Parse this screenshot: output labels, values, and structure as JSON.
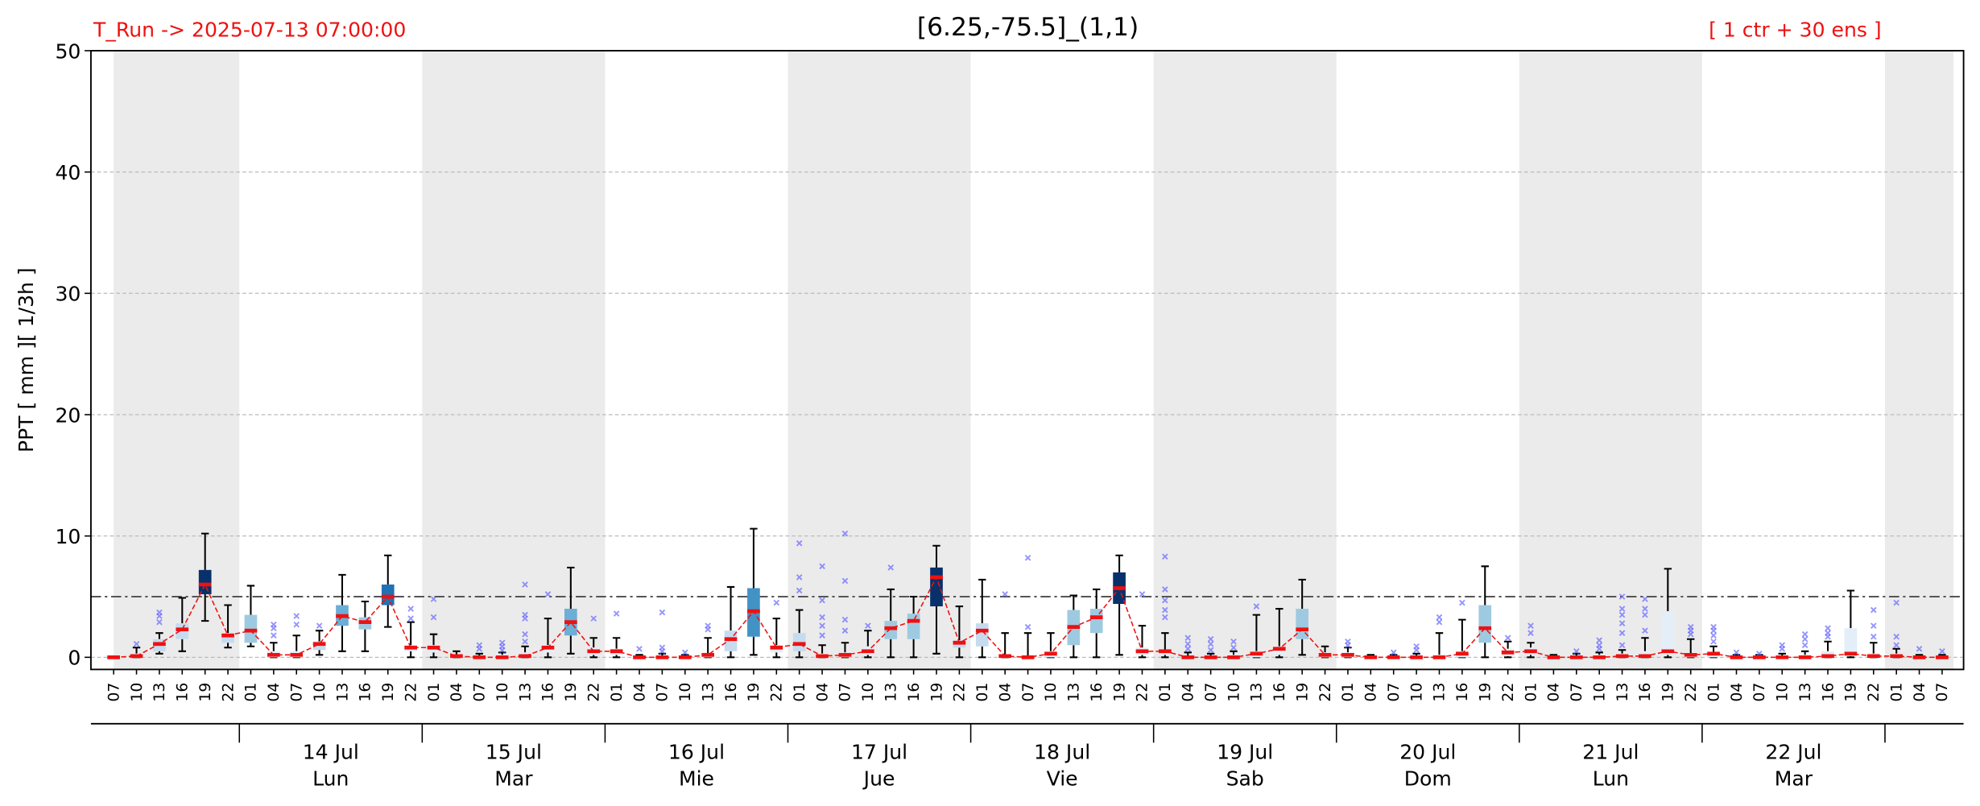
{
  "chart_data": {
    "type": "boxplot",
    "title": "[6.25,-75.5]_(1,1)",
    "run_label": "T_Run -> 2025-07-13  07:00:00",
    "members_label": "[ 1 ctr + 30 ens ]",
    "y_label": "PPT  [ mm ][ 1/3h ]",
    "ylim": [
      -1,
      50
    ],
    "yticks": [
      0,
      10,
      20,
      30,
      40,
      50
    ],
    "grid": true,
    "threshold": 5,
    "median_color": "#ee1111",
    "outlier_color": "#6666ff",
    "categories": [
      "07",
      "10",
      "13",
      "16",
      "19",
      "22",
      "01",
      "04",
      "07",
      "10",
      "13",
      "16",
      "19",
      "22",
      "01",
      "04",
      "07",
      "10",
      "13",
      "16",
      "19",
      "22",
      "01",
      "04",
      "07",
      "10",
      "13",
      "16",
      "19",
      "22",
      "01",
      "04",
      "07",
      "10",
      "13",
      "16",
      "19",
      "22",
      "01",
      "04",
      "07",
      "10",
      "13",
      "16",
      "19",
      "22",
      "01",
      "04",
      "07",
      "10",
      "13",
      "16",
      "19",
      "22",
      "01",
      "04",
      "07",
      "10",
      "13",
      "16",
      "19",
      "22",
      "01",
      "04",
      "07",
      "10",
      "13",
      "16",
      "19",
      "22",
      "01",
      "04",
      "07",
      "10",
      "13",
      "16",
      "19",
      "22",
      "01",
      "04",
      "07"
    ],
    "days": [
      {
        "date": "14 Jul",
        "weekday": "Lun"
      },
      {
        "date": "15 Jul",
        "weekday": "Mar"
      },
      {
        "date": "16 Jul",
        "weekday": "Mie"
      },
      {
        "date": "17 Jul",
        "weekday": "Jue"
      },
      {
        "date": "18 Jul",
        "weekday": "Vie"
      },
      {
        "date": "19 Jul",
        "weekday": "Sab"
      },
      {
        "date": "20 Jul",
        "weekday": "Dom"
      },
      {
        "date": "21 Jul",
        "weekday": "Lun"
      },
      {
        "date": "22 Jul",
        "weekday": "Mar"
      }
    ],
    "median": [
      0,
      0.1,
      1.1,
      2.3,
      6.0,
      1.8,
      2.2,
      0.2,
      0.2,
      1.1,
      3.4,
      2.9,
      5.0,
      0.8,
      0.8,
      0.1,
      0,
      0,
      0.1,
      0.8,
      2.9,
      0.5,
      0.5,
      0,
      0,
      0,
      0.2,
      1.5,
      3.8,
      0.8,
      1.1,
      0.1,
      0.2,
      0.5,
      2.4,
      3.0,
      6.6,
      1.2,
      2.2,
      0.1,
      0,
      0.3,
      2.5,
      3.3,
      5.7,
      0.5,
      0.5,
      0,
      0,
      0,
      0.3,
      0.7,
      2.3,
      0.2,
      0.2,
      0,
      0,
      0,
      0,
      0.3,
      2.4,
      0.4,
      0.5,
      0,
      0,
      0,
      0.1,
      0.1,
      0.5,
      0.2,
      0.3,
      0,
      0,
      0,
      0,
      0.1,
      0.3,
      0.1,
      0.1,
      0,
      0
    ],
    "q1": [
      0,
      0,
      0.5,
      1.5,
      5.2,
      1.2,
      1.2,
      0,
      0,
      0.6,
      2.6,
      2.3,
      4.3,
      0.5,
      0.4,
      0,
      0,
      0,
      0,
      0.4,
      1.8,
      0.2,
      0.2,
      0,
      0,
      0,
      0,
      0.5,
      1.7,
      0.4,
      0.5,
      0,
      0,
      0.2,
      1.5,
      1.5,
      4.2,
      0.8,
      0.9,
      0,
      0,
      0,
      1.0,
      2.0,
      4.4,
      0.2,
      0.2,
      0,
      0,
      0,
      0,
      0.2,
      1.5,
      0,
      0,
      0,
      0,
      0,
      0,
      0,
      1.2,
      0.1,
      0.2,
      0,
      0,
      0,
      0,
      0,
      0.2,
      0,
      0,
      0,
      0,
      0,
      0,
      0,
      0.1,
      0,
      0,
      0,
      0
    ],
    "q3": [
      0,
      0.3,
      1.5,
      2.8,
      7.2,
      2.0,
      3.5,
      0.5,
      0.5,
      1.3,
      4.3,
      3.3,
      6.0,
      1.0,
      1.0,
      0.2,
      0.1,
      0.2,
      0.4,
      1.0,
      4.0,
      0.8,
      0.7,
      0.1,
      0.1,
      0.1,
      0.3,
      2.2,
      5.7,
      1.0,
      2.0,
      0.3,
      0.4,
      0.9,
      3.0,
      3.6,
      7.4,
      1.4,
      2.8,
      0.2,
      0.1,
      0.5,
      3.9,
      4.0,
      7.0,
      0.8,
      0.6,
      0.1,
      0.1,
      0.2,
      0.5,
      0.9,
      4.0,
      0.4,
      0.4,
      0.1,
      0.1,
      0.1,
      0.2,
      0.5,
      4.3,
      0.7,
      0.8,
      0.1,
      0.1,
      0.2,
      0.3,
      0.5,
      3.8,
      0.3,
      0.4,
      0.1,
      0.1,
      0.1,
      0.2,
      0.5,
      2.4,
      0.3,
      0.3,
      0.1,
      0.1
    ],
    "whisker_low": [
      0,
      0,
      0.3,
      0.5,
      3.0,
      0.8,
      0.9,
      0,
      0,
      0.2,
      0.5,
      0.5,
      2.5,
      0,
      0,
      0,
      0,
      0,
      0,
      0,
      0.3,
      0,
      0,
      0,
      0,
      0,
      0,
      0,
      0.2,
      0,
      0,
      0,
      0,
      0,
      0,
      0,
      0.3,
      0,
      0,
      0,
      0,
      0,
      0,
      0,
      0.2,
      0,
      0,
      0,
      0,
      0,
      0,
      0,
      0.2,
      0,
      0,
      0,
      0,
      0,
      0,
      0,
      0,
      0,
      0,
      0,
      0,
      0,
      0,
      0,
      0,
      0,
      0,
      0,
      0,
      0,
      0,
      0,
      0,
      0,
      0,
      0,
      0
    ],
    "whisker_high": [
      0,
      0.8,
      2.0,
      4.9,
      10.2,
      4.3,
      5.9,
      1.2,
      1.8,
      2.2,
      6.8,
      4.6,
      8.4,
      2.9,
      1.9,
      0.5,
      0.3,
      0.4,
      0.9,
      3.2,
      7.4,
      1.6,
      1.6,
      0.2,
      0.3,
      0.2,
      1.6,
      5.8,
      10.6,
      3.2,
      3.9,
      1.0,
      1.2,
      2.2,
      5.6,
      5.0,
      9.2,
      4.2,
      6.4,
      2.0,
      2.0,
      2.0,
      5.1,
      5.6,
      8.4,
      2.6,
      2.0,
      0.4,
      0.3,
      0.5,
      3.5,
      4.0,
      6.4,
      0.9,
      0.8,
      0.2,
      0.2,
      0.3,
      2.0,
      3.1,
      7.5,
      1.3,
      1.2,
      0.2,
      0.3,
      0.4,
      0.6,
      1.6,
      7.3,
      1.5,
      0.9,
      0.2,
      0.2,
      0.3,
      0.5,
      1.3,
      5.5,
      1.2,
      0.7,
      0.2,
      0.2
    ],
    "outliers": [
      [],
      [
        1.1
      ],
      [
        2.9,
        3.4,
        3.7
      ],
      [],
      [],
      [],
      [],
      [
        1.8,
        2.4,
        2.7
      ],
      [
        2.7,
        3.4
      ],
      [
        2.6
      ],
      [],
      [],
      [],
      [
        3.2,
        4.0
      ],
      [
        3.3,
        4.8
      ],
      [],
      [
        0.7,
        1.0
      ],
      [
        0.6,
        0.9,
        1.2
      ],
      [
        1.3,
        1.9,
        3.2,
        3.5,
        6.0
      ],
      [
        5.2
      ],
      [],
      [
        3.2
      ],
      [
        3.6
      ],
      [
        0.7
      ],
      [
        0.5,
        0.8,
        3.7
      ],
      [
        0.4
      ],
      [
        2.3,
        2.6
      ],
      [],
      [],
      [
        4.5
      ],
      [
        5.5,
        6.6,
        9.4
      ],
      [
        1.8,
        2.6,
        3.3,
        4.7,
        7.5
      ],
      [
        2.2,
        3.1,
        6.3,
        10.2
      ],
      [
        2.6
      ],
      [
        7.4
      ],
      [],
      [],
      [],
      [],
      [
        5.2
      ],
      [
        2.5,
        8.2
      ],
      [],
      [],
      [],
      [],
      [
        5.2
      ],
      [
        3.3,
        3.9,
        4.7,
        5.6,
        8.3
      ],
      [
        0.7,
        1.1,
        1.6
      ],
      [
        0.6,
        1.1,
        1.5
      ],
      [
        0.8,
        1.3
      ],
      [
        4.2
      ],
      [],
      [],
      [],
      [
        1.0,
        1.3
      ],
      [],
      [
        0.4
      ],
      [
        0.6,
        0.9
      ],
      [
        2.9,
        3.3
      ],
      [
        4.5
      ],
      [],
      [
        1.6
      ],
      [
        2.0,
        2.6
      ],
      [],
      [
        0.5
      ],
      [
        0.7,
        1.0,
        1.4
      ],
      [
        1.0,
        2.0,
        2.8,
        3.5,
        4.0,
        5.0
      ],
      [
        2.2,
        3.5,
        4.0,
        4.8
      ],
      [],
      [
        1.9,
        2.2,
        2.5
      ],
      [
        1.3,
        1.8,
        2.2,
        2.5
      ],
      [
        0.4
      ],
      [
        0.3
      ],
      [
        0.7,
        1.0
      ],
      [
        1.0,
        1.5,
        1.9
      ],
      [
        1.7,
        2.0,
        2.4
      ],
      [],
      [
        1.7,
        2.6,
        3.9
      ],
      [
        1.0,
        1.7,
        4.5
      ],
      [
        0.7
      ],
      [
        0.5
      ]
    ],
    "box_colors": [
      "#f0f5fb",
      "#e3eef8",
      "#c6dbef",
      "#c6dbef",
      "#08306b",
      "#c6dbef",
      "#9ecae1",
      "#e3eef8",
      "#e3eef8",
      "#c6dbef",
      "#6baed6",
      "#9ecae1",
      "#2171b5",
      "#e3eef8",
      "#e3eef8",
      "#f0f5fb",
      "#f0f5fb",
      "#f0f5fb",
      "#e3eef8",
      "#e3eef8",
      "#6baed6",
      "#e3eef8",
      "#e3eef8",
      "#f0f5fb",
      "#f0f5fb",
      "#f0f5fb",
      "#f0f5fb",
      "#c6dbef",
      "#4292c6",
      "#e3eef8",
      "#c6dbef",
      "#f0f5fb",
      "#e3eef8",
      "#e3eef8",
      "#9ecae1",
      "#9ecae1",
      "#08306b",
      "#c6dbef",
      "#c6dbef",
      "#f0f5fb",
      "#f0f5fb",
      "#e3eef8",
      "#9ecae1",
      "#9ecae1",
      "#08306b",
      "#e3eef8",
      "#e3eef8",
      "#f0f5fb",
      "#f0f5fb",
      "#f0f5fb",
      "#e3eef8",
      "#e3eef8",
      "#9ecae1",
      "#e3eef8",
      "#e3eef8",
      "#f0f5fb",
      "#f0f5fb",
      "#f0f5fb",
      "#f0f5fb",
      "#e3eef8",
      "#9ecae1",
      "#e3eef8",
      "#e3eef8",
      "#f0f5fb",
      "#f0f5fb",
      "#f0f5fb",
      "#f0f5fb",
      "#e3eef8",
      "#e3eef8",
      "#e3eef8",
      "#e3eef8",
      "#f0f5fb",
      "#f0f5fb",
      "#f0f5fb",
      "#f0f5fb",
      "#e3eef8",
      "#e3eef8",
      "#e3eef8",
      "#e3eef8",
      "#f0f5fb",
      "#f0f5fb"
    ]
  }
}
